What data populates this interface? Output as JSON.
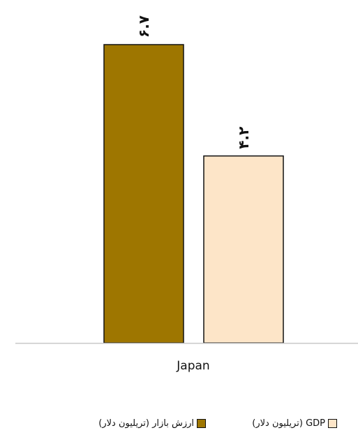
{
  "chart_data": {
    "type": "bar",
    "categories": [
      "Japan"
    ],
    "series": [
      {
        "name": "ارزش بازار (تریلیون دلار)",
        "values": [
          6.7
        ],
        "display_label": "۶.۷",
        "color": "#9E7600"
      },
      {
        "name": "GDP (تریلیون دلار)",
        "values": [
          4.2
        ],
        "display_label": "۴.۲",
        "color": "#FDE5C8"
      }
    ],
    "title": "",
    "xlabel": "",
    "ylabel": "",
    "ylim": [
      0,
      6.7
    ],
    "grid": false,
    "legend_position": "bottom"
  }
}
